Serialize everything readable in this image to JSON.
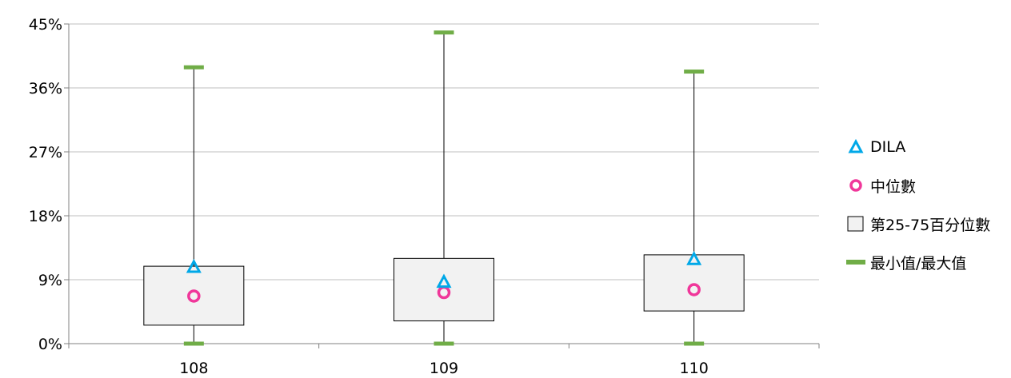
{
  "chart_data": {
    "type": "boxplot",
    "categories": [
      "108",
      "109",
      "110"
    ],
    "ylim": [
      0,
      45
    ],
    "yticks": [
      "0%",
      "9%",
      "18%",
      "27%",
      "36%",
      "45%"
    ],
    "ytick_values": [
      0,
      9,
      18,
      27,
      36,
      45
    ],
    "grid": true,
    "legend_position": "right",
    "series": {
      "min": [
        0,
        0,
        0
      ],
      "max": [
        38.9,
        43.8,
        38.3
      ],
      "q1": [
        2.6,
        3.2,
        4.6
      ],
      "q3": [
        10.9,
        12.0,
        12.5
      ],
      "median": [
        6.7,
        7.2,
        7.6
      ],
      "dila": [
        10.8,
        8.7,
        11.9
      ]
    },
    "legend": [
      {
        "label": "DILA",
        "symbol": "triangle"
      },
      {
        "label": "中位數",
        "symbol": "circle"
      },
      {
        "label": "第25-75百分位數",
        "symbol": "box"
      },
      {
        "label": "最小值/最大值",
        "symbol": "dash"
      }
    ],
    "colors": {
      "dila": "#00a8e8",
      "median": "#f0379a",
      "minmax": "#70ad47",
      "box_fill": "#f2f2f2",
      "box_stroke": "#000000",
      "grid": "#bfbfbf",
      "axis": "#808080"
    }
  }
}
